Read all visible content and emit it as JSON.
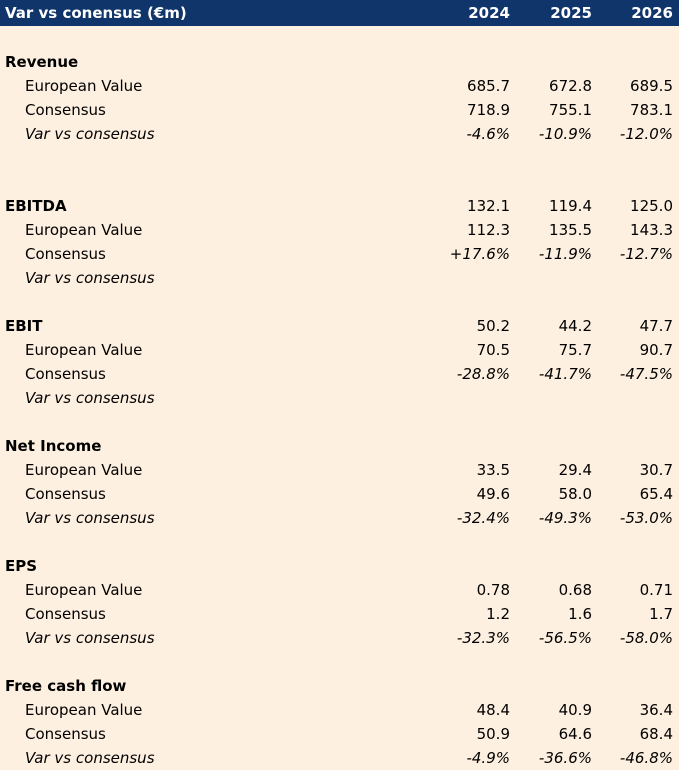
{
  "header": {
    "title": "Var vs conensus (€m)",
    "years": [
      "2024",
      "2025",
      "2026"
    ]
  },
  "sections": [
    {
      "title": "Revenue",
      "rows": [
        {
          "label": "European Value",
          "values": [
            "685.7",
            "672.8",
            "689.5"
          ]
        },
        {
          "label": "Consensus",
          "values": [
            "718.9",
            "755.1",
            "783.1"
          ]
        },
        {
          "label": "Var vs consensus",
          "values": [
            "-4.6%",
            "-10.9%",
            "-12.0%"
          ]
        }
      ]
    },
    {
      "title": "EBITDA",
      "title_values": [
        "132.1",
        "119.4",
        "125.0"
      ],
      "rows": [
        {
          "label": "European Value",
          "values": [
            "112.3",
            "135.5",
            "143.3"
          ]
        },
        {
          "label": "Consensus",
          "values": [
            "+17.6%",
            "-11.9%",
            "-12.7%"
          ]
        },
        {
          "label": "Var vs consensus",
          "values": [
            "",
            "",
            ""
          ]
        }
      ]
    },
    {
      "title": "EBIT",
      "title_values": [
        "50.2",
        "44.2",
        "47.7"
      ],
      "rows": [
        {
          "label": "European Value",
          "values": [
            "70.5",
            "75.7",
            "90.7"
          ]
        },
        {
          "label": "Consensus",
          "values": [
            "-28.8%",
            "-41.7%",
            "-47.5%"
          ]
        },
        {
          "label": "Var vs consensus",
          "values": [
            "",
            "",
            ""
          ]
        }
      ]
    },
    {
      "title": "Net Income",
      "rows": [
        {
          "label": "European Value",
          "values": [
            "33.5",
            "29.4",
            "30.7"
          ]
        },
        {
          "label": "Consensus",
          "values": [
            "49.6",
            "58.0",
            "65.4"
          ]
        },
        {
          "label": "Var vs consensus",
          "values": [
            "-32.4%",
            "-49.3%",
            "-53.0%"
          ]
        }
      ]
    },
    {
      "title": "EPS",
      "rows": [
        {
          "label": "European Value",
          "values": [
            "0.78",
            "0.68",
            "0.71"
          ]
        },
        {
          "label": "Consensus",
          "values": [
            "1.2",
            "1.6",
            "1.7"
          ]
        },
        {
          "label": "Var vs consensus",
          "values": [
            "-32.3%",
            "-56.5%",
            "-58.0%"
          ]
        }
      ]
    },
    {
      "title": "Free cash flow",
      "rows": [
        {
          "label": "European Value",
          "values": [
            "48.4",
            "40.9",
            "36.4"
          ]
        },
        {
          "label": "Consensus",
          "values": [
            "50.9",
            "64.6",
            "68.4"
          ]
        },
        {
          "label": "Var vs consensus",
          "values": [
            "-4.9%",
            "-36.6%",
            "-46.8%"
          ]
        }
      ]
    }
  ]
}
